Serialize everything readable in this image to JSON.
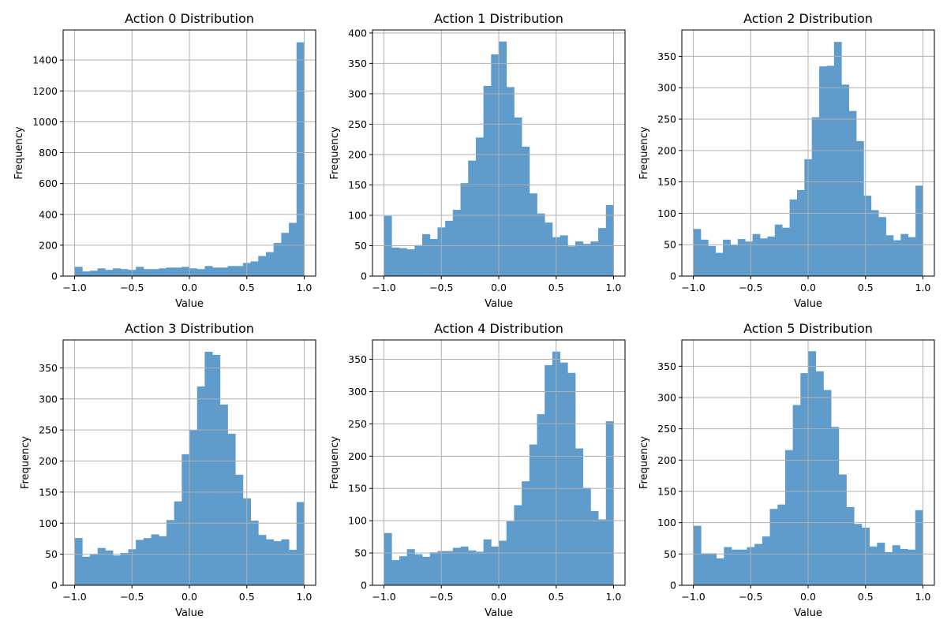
{
  "chart_data": [
    {
      "type": "bar",
      "title": "Action 0 Distribution",
      "xlabel": "Value",
      "ylabel": "Frequency",
      "xlim": [
        -1.1,
        1.1
      ],
      "ylim": [
        0,
        1595
      ],
      "xticks": [
        -1.0,
        -0.5,
        0.0,
        0.5,
        1.0
      ],
      "xtick_labels": [
        "−1.0",
        "−0.5",
        "0.0",
        "0.5",
        "1.0"
      ],
      "yticks": [
        0,
        200,
        400,
        600,
        800,
        1000,
        1200,
        1400
      ],
      "bin_range": [
        -1,
        1
      ],
      "grid": true,
      "color": "#5f9ccb",
      "values": [
        60,
        30,
        35,
        50,
        40,
        50,
        45,
        40,
        60,
        45,
        45,
        50,
        55,
        55,
        60,
        50,
        45,
        65,
        55,
        55,
        65,
        65,
        85,
        95,
        130,
        155,
        215,
        280,
        345,
        1515
      ]
    },
    {
      "type": "bar",
      "title": "Action 1 Distribution",
      "xlabel": "Value",
      "ylabel": "Frequency",
      "xlim": [
        -1.1,
        1.1
      ],
      "ylim": [
        0,
        405
      ],
      "xticks": [
        -1.0,
        -0.5,
        0.0,
        0.5,
        1.0
      ],
      "xtick_labels": [
        "−1.0",
        "−0.5",
        "0.0",
        "0.5",
        "1.0"
      ],
      "yticks": [
        0,
        50,
        100,
        150,
        200,
        250,
        300,
        350,
        400
      ],
      "bin_range": [
        -1,
        1
      ],
      "grid": true,
      "color": "#5f9ccb",
      "values": [
        99,
        47,
        46,
        44,
        51,
        69,
        61,
        80,
        91,
        109,
        153,
        190,
        228,
        313,
        365,
        386,
        311,
        261,
        213,
        136,
        103,
        88,
        64,
        67,
        49,
        57,
        53,
        57,
        79,
        117
      ]
    },
    {
      "type": "bar",
      "title": "Action 2 Distribution",
      "xlabel": "Value",
      "ylabel": "Frequency",
      "xlim": [
        -1.1,
        1.1
      ],
      "ylim": [
        0,
        392
      ],
      "xticks": [
        -1.0,
        -0.5,
        0.0,
        0.5,
        1.0
      ],
      "xtick_labels": [
        "−1.0",
        "−0.5",
        "0.0",
        "0.5",
        "1.0"
      ],
      "yticks": [
        0,
        50,
        100,
        150,
        200,
        250,
        300,
        350
      ],
      "bin_range": [
        -1,
        1
      ],
      "grid": true,
      "color": "#5f9ccb",
      "values": [
        75,
        58,
        48,
        37,
        58,
        49,
        59,
        55,
        67,
        60,
        63,
        82,
        77,
        122,
        137,
        186,
        253,
        334,
        335,
        373,
        305,
        263,
        215,
        128,
        105,
        94,
        65,
        57,
        67,
        62,
        144
      ]
    },
    {
      "type": "bar",
      "title": "Action 3 Distribution",
      "xlabel": "Value",
      "ylabel": "Frequency",
      "xlim": [
        -1.1,
        1.1
      ],
      "ylim": [
        0,
        395
      ],
      "xticks": [
        -1.0,
        -0.5,
        0.0,
        0.5,
        1.0
      ],
      "xtick_labels": [
        "−1.0",
        "−0.5",
        "0.0",
        "0.5",
        "1.0"
      ],
      "yticks": [
        0,
        50,
        100,
        150,
        200,
        250,
        300,
        350
      ],
      "bin_range": [
        -1,
        1
      ],
      "grid": true,
      "color": "#5f9ccb",
      "values": [
        76,
        46,
        50,
        60,
        56,
        48,
        52,
        58,
        73,
        76,
        82,
        79,
        105,
        135,
        211,
        250,
        320,
        376,
        371,
        291,
        244,
        178,
        140,
        104,
        81,
        74,
        71,
        74,
        57,
        134
      ]
    },
    {
      "type": "bar",
      "title": "Action 4 Distribution",
      "xlabel": "Value",
      "ylabel": "Frequency",
      "xlim": [
        -1.1,
        1.1
      ],
      "ylim": [
        0,
        380
      ],
      "xticks": [
        -1.0,
        -0.5,
        0.0,
        0.5,
        1.0
      ],
      "xtick_labels": [
        "−1.0",
        "−0.5",
        "0.0",
        "0.5",
        "1.0"
      ],
      "yticks": [
        0,
        50,
        100,
        150,
        200,
        250,
        300,
        350
      ],
      "bin_range": [
        -1,
        1
      ],
      "grid": true,
      "color": "#5f9ccb",
      "values": [
        81,
        39,
        45,
        56,
        48,
        44,
        51,
        53,
        53,
        58,
        60,
        54,
        52,
        71,
        60,
        69,
        99,
        124,
        161,
        218,
        265,
        341,
        362,
        345,
        329,
        212,
        151,
        115,
        102,
        254
      ]
    },
    {
      "type": "bar",
      "title": "Action 5 Distribution",
      "xlabel": "Value",
      "ylabel": "Frequency",
      "xlim": [
        -1.1,
        1.1
      ],
      "ylim": [
        0,
        392
      ],
      "xticks": [
        -1.0,
        -0.5,
        0.0,
        0.5,
        1.0
      ],
      "xtick_labels": [
        "−1.0",
        "−0.5",
        "0.0",
        "0.5",
        "1.0"
      ],
      "yticks": [
        0,
        50,
        100,
        150,
        200,
        250,
        300,
        350
      ],
      "bin_range": [
        -1,
        1
      ],
      "grid": true,
      "color": "#5f9ccb",
      "values": [
        95,
        51,
        51,
        43,
        61,
        57,
        57,
        61,
        66,
        78,
        122,
        129,
        216,
        288,
        339,
        374,
        342,
        312,
        253,
        177,
        125,
        98,
        92,
        62,
        68,
        53,
        64,
        58,
        57,
        120
      ]
    }
  ]
}
